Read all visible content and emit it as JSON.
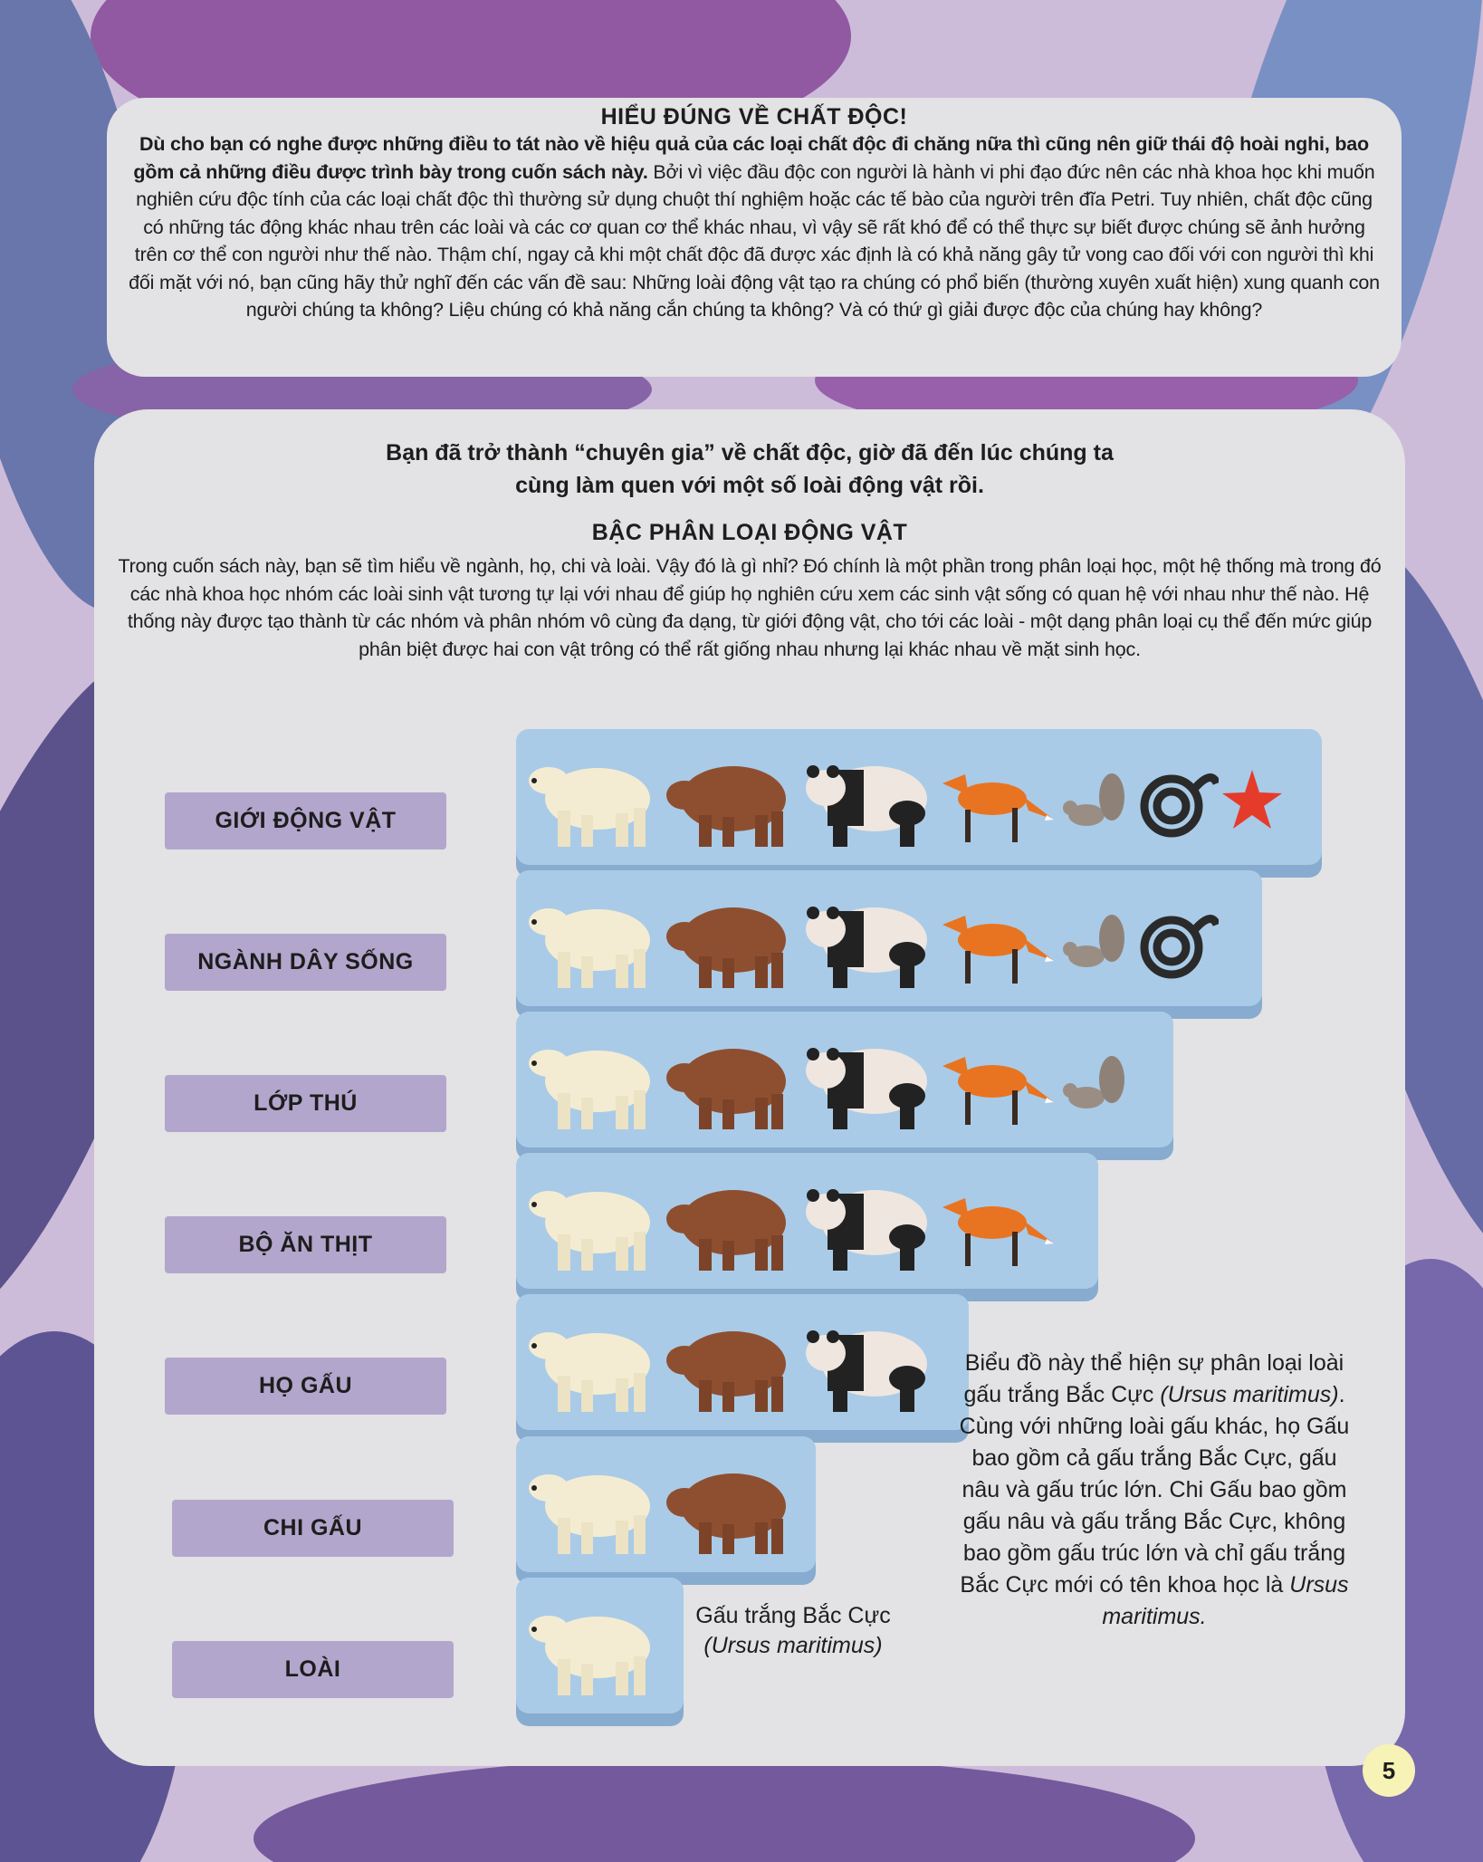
{
  "colors": {
    "label_bg": "#b3a6cc",
    "bar_bg": "#a9cbe7",
    "panel_bg": "#e3e2e4",
    "page_badge": "#f7f2b6"
  },
  "top": {
    "title": "HIỂU ĐÚNG VỀ CHẤT ĐỘC!",
    "bold_lead": "Dù cho bạn có nghe được những điều to tát nào về hiệu quả của các loại chất độc đi chăng nữa thì cũng nên giữ thái độ hoài nghi, bao gồm cả những điều được trình bày trong cuốn sách này.",
    "body": " Bởi vì việc đầu độc con người là hành vi phi đạo đức nên các nhà khoa học khi muốn nghiên cứu độc tính của các loại chất độc thì thường sử dụng chuột thí nghiệm hoặc các tế bào của người trên đĩa Petri. Tuy nhiên, chất độc cũng có những tác động khác nhau trên các loài và các cơ quan cơ thể khác nhau, vì vậy sẽ rất khó để có thể thực sự biết được chúng sẽ ảnh hưởng trên cơ thể con người như thế nào. Thậm chí, ngay cả khi một chất độc đã được xác định là có khả năng gây tử vong cao đối với con người thì khi đối mặt với nó, bạn cũng hãy thử nghĩ đến các vấn đề sau: Những loài động vật tạo ra chúng có phổ biến (thường xuyên xuất hiện) xung quanh con người chúng ta không? Liệu chúng có khả năng cắn chúng ta không? Và có thứ gì giải được độc của chúng hay không?"
  },
  "main": {
    "intro_line1": "Bạn đã trở thành “chuyên gia” về chất độc, giờ đã đến lúc chúng ta",
    "intro_line2": "cùng làm quen với một số loài động vật rồi.",
    "section_title": "BẬC PHÂN LOẠI ĐỘNG VẬT",
    "section_body": "Trong cuốn sách này, bạn sẽ tìm hiểu về ngành, họ, chi và loài. Vậy đó là gì nhỉ? Đó chính là một phần trong phân loại học, một hệ thống mà trong đó các nhà khoa học nhóm các loài sinh vật tương tự lại với nhau để giúp họ nghiên cứu xem các sinh vật sống có quan hệ với nhau như thế nào. Hệ thống này được tạo thành từ các nhóm và phân nhóm vô cùng đa dạng, từ giới động vật, cho tới các loài - một dạng phân loại cụ thể đến mức giúp phân biệt được hai con vật trông có thể rất giống nhau nhưng lại khác nhau về mặt sinh học."
  },
  "taxonomy": [
    {
      "label": "GIỚI ĐỘNG VẬT",
      "animals": [
        "polar-bear",
        "brown-bear",
        "panda",
        "fox",
        "squirrel",
        "snake",
        "starfish"
      ]
    },
    {
      "label": "NGÀNH DÂY SỐNG",
      "animals": [
        "polar-bear",
        "brown-bear",
        "panda",
        "fox",
        "squirrel",
        "snake"
      ]
    },
    {
      "label": "LỚP THÚ",
      "animals": [
        "polar-bear",
        "brown-bear",
        "panda",
        "fox",
        "squirrel"
      ]
    },
    {
      "label": "BỘ ĂN THỊT",
      "animals": [
        "polar-bear",
        "brown-bear",
        "panda",
        "fox"
      ]
    },
    {
      "label": "HỌ GẤU",
      "animals": [
        "polar-bear",
        "brown-bear",
        "panda"
      ]
    },
    {
      "label": "CHI GẤU",
      "animals": [
        "polar-bear",
        "brown-bear"
      ]
    },
    {
      "label": "LOÀI",
      "animals": [
        "polar-bear"
      ]
    }
  ],
  "species_caption": {
    "name": "Gấu trắng Bắc Cực",
    "latin": "(Ursus maritimus)"
  },
  "note": {
    "p1": "Biểu đồ này thể hiện sự phân loại loài gấu trắng Bắc Cực ",
    "latin1": "(Ursus maritimus)",
    "p2": ". Cùng với những loài gấu khác, họ Gấu bao gồm cả gấu trắng Bắc Cực, gấu nâu và gấu trúc lớn. Chi Gấu bao gồm gấu nâu và gấu trắng Bắc Cực, không bao gồm gấu trúc lớn và chỉ gấu trắng Bắc Cực mới có tên khoa học là ",
    "latin2": "Ursus maritimus."
  },
  "page_number": "5"
}
